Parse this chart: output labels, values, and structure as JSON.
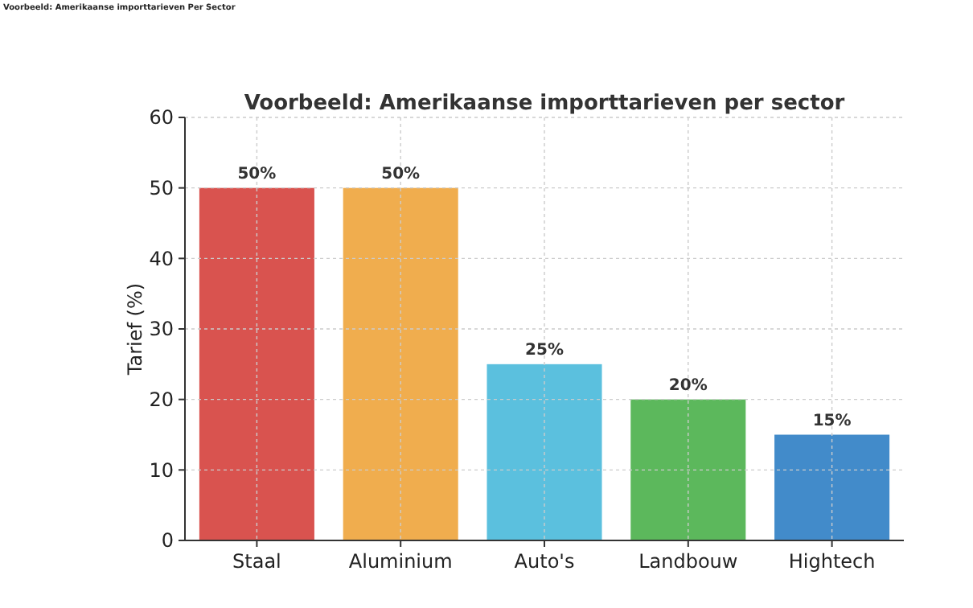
{
  "chart_data": {
    "type": "bar",
    "title": "Voorbeeld: Amerikaanse importtarieven per sector",
    "ylabel": "Tarief (%)",
    "annotations": [
      "Voorbeeld: Amerikaanse importtarieven Per Sector"
    ],
    "categories": [
      "Staal",
      "Aluminium",
      "Auto's",
      "Landbouw",
      "Hightech"
    ],
    "values": [
      50,
      50,
      25,
      20,
      15
    ],
    "colors": [
      "#d9534f",
      "#f0ad4e",
      "#5bc0de",
      "#5cb85c",
      "#428bca"
    ],
    "value_labels": [
      "50%",
      "50%",
      "25%",
      "20%",
      "15%"
    ],
    "ylim": [
      0,
      60
    ],
    "yticks": [
      0,
      10,
      20,
      30,
      40,
      50,
      60
    ],
    "grid": true
  }
}
